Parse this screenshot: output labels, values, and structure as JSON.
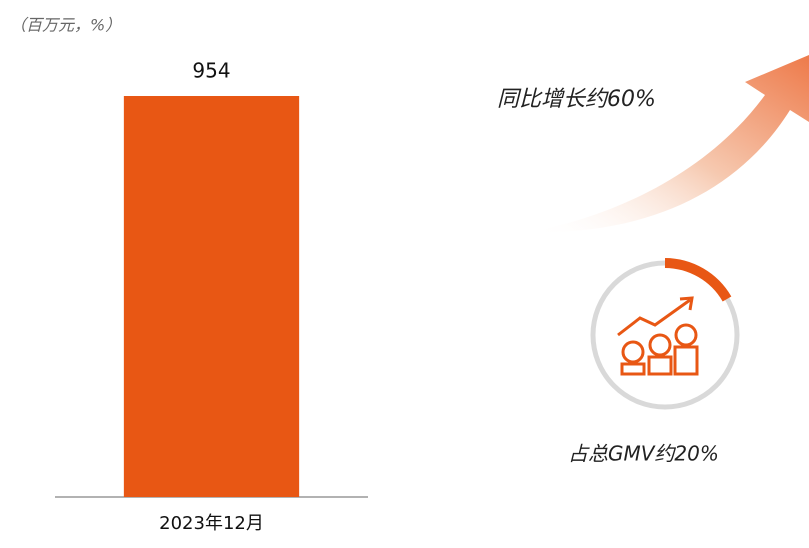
{
  "chart_data": {
    "type": "bar",
    "subtitle": "（百万元，%）",
    "categories": [
      "2023年12月"
    ],
    "values": [
      954
    ],
    "color": "#e85714",
    "annotations": [
      "同比增长约60%",
      "占总GMV约20%"
    ]
  }
}
